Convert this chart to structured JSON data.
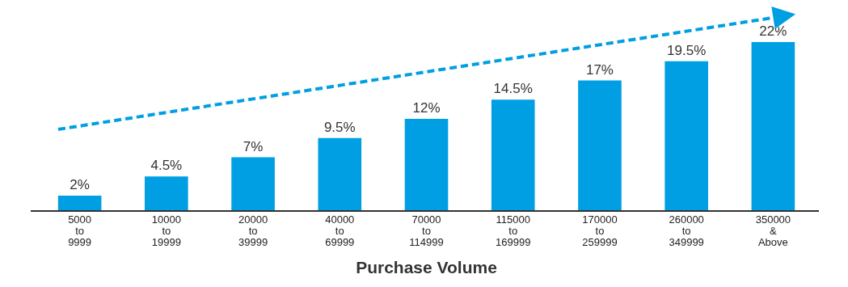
{
  "chart_data": {
    "type": "bar",
    "xlabel": "Purchase Volume",
    "categories": [
      "5000 to 9999",
      "10000 to 19999",
      "20000 to 39999",
      "40000 to 69999",
      "70000 to 114999",
      "115000 to 169999",
      "170000 to 259999",
      "260000 to 349999",
      "350000 & Above"
    ],
    "values": [
      2,
      4.5,
      7,
      9.5,
      12,
      14.5,
      17,
      19.5,
      22
    ],
    "value_labels": [
      "2%",
      "4.5%",
      "7%",
      "9.5%",
      "12%",
      "14.5%",
      "17%",
      "19.5%",
      "22%"
    ],
    "color": "#009fe3"
  }
}
